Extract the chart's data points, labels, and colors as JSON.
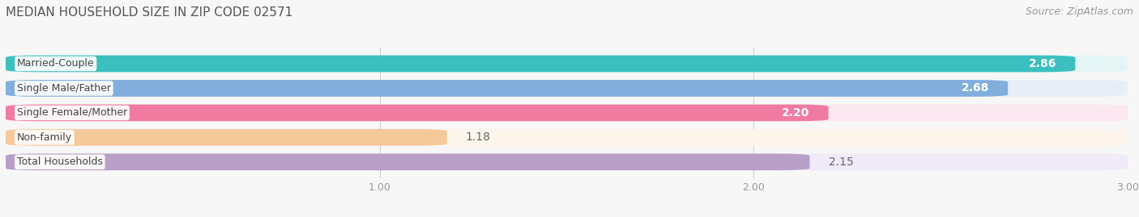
{
  "title": "MEDIAN HOUSEHOLD SIZE IN ZIP CODE 02571",
  "source": "Source: ZipAtlas.com",
  "categories": [
    "Married-Couple",
    "Single Male/Father",
    "Single Female/Mother",
    "Non-family",
    "Total Households"
  ],
  "values": [
    2.86,
    2.68,
    2.2,
    1.18,
    2.15
  ],
  "bar_colors": [
    "#3bbfbf",
    "#82aedd",
    "#f07aa0",
    "#f5c99a",
    "#b89fc8"
  ],
  "bar_bg_colors": [
    "#e4f5f5",
    "#e8eef8",
    "#fce8f0",
    "#fdf5ec",
    "#f0eaf8"
  ],
  "label_colors_inside": [
    "#ffffff",
    "#ffffff",
    "#ffffff",
    "#555555",
    "#666666"
  ],
  "value_inside_bar": [
    true,
    true,
    true,
    false,
    false
  ],
  "xlim": [
    0,
    3.0
  ],
  "xticks": [
    1.0,
    2.0,
    3.0
  ],
  "title_fontsize": 11,
  "source_fontsize": 9,
  "bar_label_fontsize": 10,
  "category_fontsize": 9,
  "background_color": "#f7f7f7"
}
